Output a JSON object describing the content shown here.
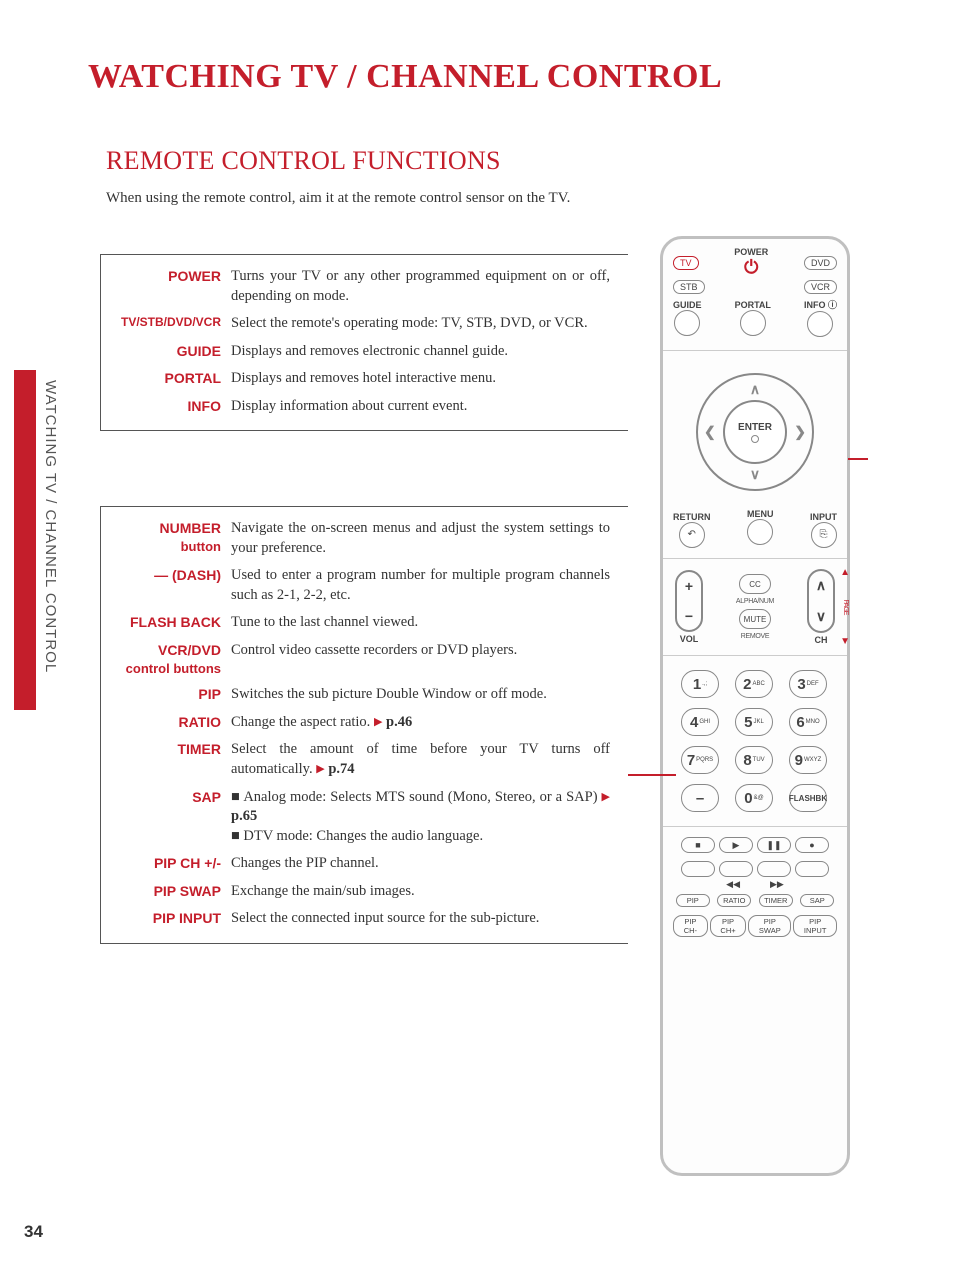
{
  "page_number": "34",
  "side_label": "WATCHING TV / CHANNEL CONTROL",
  "title": "WATCHING TV / CHANNEL CONTROL",
  "section_title": "REMOTE CONTROL FUNCTIONS",
  "section_desc": "When using the remote control, aim it at the remote control sensor on the TV.",
  "colors": {
    "accent": "#c41e2b",
    "text": "#333333",
    "border": "#888888"
  },
  "block1": [
    {
      "label": "POWER",
      "desc": "Turns your TV or any other programmed equipment  on or off, depending on mode."
    },
    {
      "label": "TV/STB/DVD/VCR",
      "desc": "Select the remote's operating mode: TV, STB, DVD, or VCR."
    },
    {
      "label": "GUIDE",
      "desc": "Displays and removes electronic channel guide."
    },
    {
      "label": "PORTAL",
      "desc": "Displays and removes hotel interactive menu."
    },
    {
      "label": "INFO",
      "desc": "Display information about current event."
    }
  ],
  "block2": [
    {
      "label": "NUMBER",
      "label2": "button",
      "desc": "Navigate the on-screen menus and adjust the system settings to your preference."
    },
    {
      "label": "— (DASH)",
      "desc": "Used to enter a program number for multiple program channels such as 2-1, 2-2, etc."
    },
    {
      "label": "FLASH BACK",
      "desc": "Tune to the last channel viewed."
    },
    {
      "label": "VCR/DVD",
      "label2": "control buttons",
      "desc": "Control video cassette recorders or DVD players."
    },
    {
      "label": "PIP",
      "desc": "Switches the sub picture Double Window or off mode."
    },
    {
      "label": "RATIO",
      "desc_html": "Change the aspect ratio. <span class='tri'>▶</span> <b>p.46</b>"
    },
    {
      "label": "TIMER",
      "desc_html": "Select the amount of time before your TV turns off automatically. <span class='tri'>▶</span> <b>p.74</b>"
    },
    {
      "label": "SAP",
      "desc_html": "■ Analog mode: Selects MTS sound (Mono, Stereo, or a SAP) <span class='tri'>▶</span> <b>p.65</b><br>■ DTV mode: Changes the audio language."
    },
    {
      "label": "PIP CH +/-",
      "desc": "Changes the PIP channel."
    },
    {
      "label": "PIP SWAP",
      "desc": "Exchange the main/sub images."
    },
    {
      "label": "PIP INPUT",
      "desc": "Select the connected input source for the sub-picture."
    }
  ],
  "remote": {
    "top_modes": {
      "tv": "TV",
      "dvd": "DVD",
      "stb": "STB",
      "vcr": "VCR"
    },
    "power": "POWER",
    "row2": {
      "guide": "GUIDE",
      "portal": "PORTAL",
      "info": "INFO ⓘ"
    },
    "enter": "ENTER",
    "row3": {
      "return": "RETURN",
      "menu": "MENU",
      "input": "INPUT"
    },
    "vol": "VOL",
    "ch": "CH",
    "cc": "CC",
    "alphanum": "ALPHA/NUM",
    "mute": "MUTE",
    "remove": "REMOVE",
    "page_label": "PAGE",
    "numpad": [
      {
        "n": "1",
        "s": ".,;"
      },
      {
        "n": "2",
        "s": "ABC"
      },
      {
        "n": "3",
        "s": "DEF"
      },
      {
        "n": "4",
        "s": "GHI"
      },
      {
        "n": "5",
        "s": "JKL"
      },
      {
        "n": "6",
        "s": "MNO"
      },
      {
        "n": "7",
        "s": "PQRS"
      },
      {
        "n": "8",
        "s": "TUV"
      },
      {
        "n": "9",
        "s": "WXYZ"
      },
      {
        "n": "–",
        "s": ""
      },
      {
        "n": "0",
        "s": "&@"
      },
      {
        "n": "FLASHBK",
        "s": ""
      }
    ],
    "transport": [
      "■",
      "▶",
      "❚❚",
      "●"
    ],
    "seek": [
      "◀◀",
      "▶▶"
    ],
    "pip_row1": [
      "PIP",
      "RATIO",
      "TIMER",
      "SAP"
    ],
    "pip_row2": [
      "PIP CH-",
      "PIP CH+",
      "PIP SWAP",
      "PIP INPUT"
    ]
  }
}
